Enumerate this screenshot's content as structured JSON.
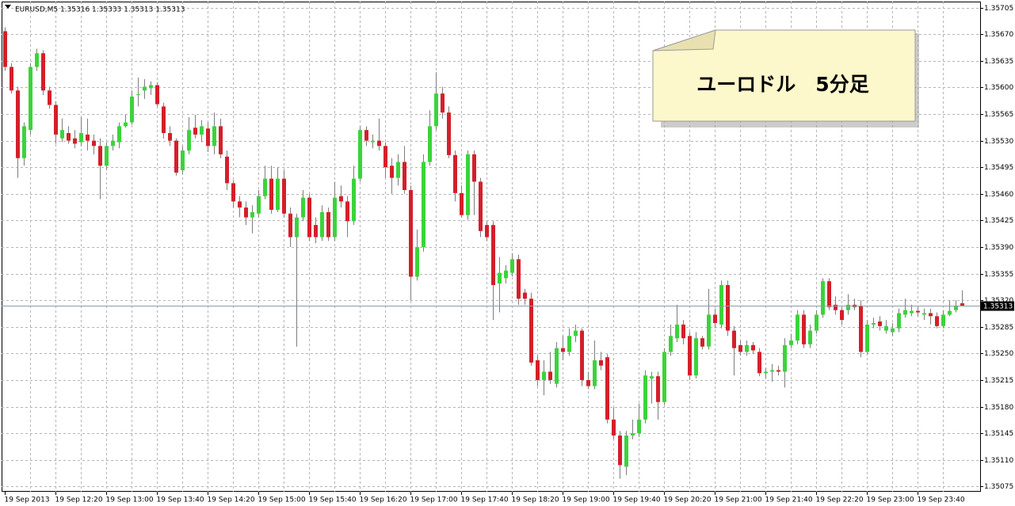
{
  "chart_data": {
    "type": "candlestick",
    "header": "EURUSD,M5  1.35316 1.35333 1.35313 1.35313",
    "annotation": "ユーロドル　5分足",
    "categories": [
      "19 Sep 2013",
      null,
      null,
      null,
      null,
      null,
      null,
      null,
      "19 Sep 12:20",
      null,
      null,
      null,
      null,
      null,
      null,
      null,
      "19 Sep 13:00",
      null,
      null,
      null,
      null,
      null,
      null,
      null,
      "19 Sep 13:40",
      null,
      null,
      null,
      null,
      null,
      null,
      null,
      "19 Sep 14:20",
      null,
      null,
      null,
      null,
      null,
      null,
      null,
      "19 Sep 15:00",
      null,
      null,
      null,
      null,
      null,
      null,
      null,
      "19 Sep 15:40",
      null,
      null,
      null,
      null,
      null,
      null,
      null,
      "19 Sep 16:20",
      null,
      null,
      null,
      null,
      null,
      null,
      null,
      "19 Sep 17:00",
      null,
      null,
      null,
      null,
      null,
      null,
      null,
      "19 Sep 17:40",
      null,
      null,
      null,
      null,
      null,
      null,
      null,
      "19 Sep 18:20",
      null,
      null,
      null,
      null,
      null,
      null,
      null,
      "19 Sep 19:00",
      null,
      null,
      null,
      null,
      null,
      null,
      null,
      "19 Sep 19:40",
      null,
      null,
      null,
      null,
      null,
      null,
      null,
      "19 Sep 20:20",
      null,
      null,
      null,
      null,
      null,
      null,
      null,
      "19 Sep 21:00",
      null,
      null,
      null,
      null,
      null,
      null,
      null,
      "19 Sep 21:40",
      null,
      null,
      null,
      null,
      null,
      null,
      null,
      "19 Sep 22:20",
      null,
      null,
      null,
      null,
      null,
      null,
      null,
      "19 Sep 23:00",
      null,
      null,
      null,
      null,
      null,
      null,
      null,
      "19 Sep 23:40",
      null,
      null,
      null,
      null,
      null,
      null,
      null
    ],
    "open": [
      1.35674,
      1.35627,
      1.35596,
      1.35507,
      1.35544,
      1.35627,
      1.35645,
      1.35596,
      1.35577,
      1.35533,
      1.3554,
      1.35533,
      1.35528,
      1.35538,
      1.3553,
      1.35523,
      1.35497,
      1.35523,
      1.35528,
      1.35549,
      1.35554,
      1.3559,
      1.35596,
      1.35599,
      1.35603,
      1.35575,
      1.3554,
      1.3553,
      1.35491,
      1.35517,
      1.35547,
      1.35538,
      1.35546,
      1.35523,
      1.35549,
      1.35509,
      1.35474,
      1.3545,
      1.35442,
      1.35429,
      1.35434,
      1.35457,
      1.3548,
      1.35439,
      1.3548,
      1.35434,
      1.35403,
      1.35429,
      1.35455,
      1.35419,
      1.35403,
      1.35436,
      1.35403,
      1.35457,
      1.3545,
      1.35424,
      1.3548,
      1.35544,
      1.35528,
      1.3553,
      1.35523,
      1.35497,
      1.35481,
      1.35502,
      1.35465,
      1.35351,
      1.3539,
      1.35502,
      1.35549,
      1.35592,
      1.35567,
      1.35511,
      1.35461,
      1.35432,
      1.35512,
      1.35476,
      1.35419,
      1.35419,
      1.35342,
      1.35349,
      1.35356,
      1.35374,
      1.3533,
      1.35322,
      1.35241,
      1.35215,
      1.35226,
      1.3521,
      1.35257,
      1.35252,
      1.35273,
      1.3528,
      1.35215,
      1.35207,
      1.35241,
      1.35245,
      1.35163,
      1.35142,
      1.35101,
      1.35142,
      1.35145,
      1.35163,
      1.35217,
      1.3522,
      1.35186,
      1.35252,
      1.3527,
      1.35288,
      1.35273,
      1.35221,
      1.3527,
      1.35259,
      1.35301,
      1.35288,
      1.3534,
      1.3528,
      1.35261,
      1.35252,
      1.35261,
      1.35252,
      1.35224,
      1.35226,
      1.35228,
      1.35226,
      1.35261,
      1.35267,
      1.35301,
      1.35262,
      1.3528,
      1.35301,
      1.35345,
      1.35314,
      1.35307,
      1.35307,
      1.35314,
      1.35313,
      1.35252,
      1.35288,
      1.35292,
      1.3528,
      1.35278,
      1.35283,
      1.35301,
      1.35303,
      1.35306,
      1.35301,
      1.35303,
      1.35299,
      1.35286,
      1.35301,
      1.35307,
      1.35316
    ],
    "high": [
      1.35679,
      1.35632,
      1.35601,
      1.35554,
      1.35632,
      1.35651,
      1.35649,
      1.35601,
      1.35582,
      1.35559,
      1.35549,
      1.35544,
      1.35561,
      1.35559,
      1.35538,
      1.35533,
      1.35528,
      1.35538,
      1.35554,
      1.35564,
      1.35596,
      1.35613,
      1.35611,
      1.35608,
      1.35607,
      1.3558,
      1.35549,
      1.35533,
      1.35523,
      1.35561,
      1.35564,
      1.35557,
      1.35554,
      1.35567,
      1.35559,
      1.35517,
      1.35478,
      1.35457,
      1.3545,
      1.35445,
      1.35465,
      1.35497,
      1.35497,
      1.35495,
      1.35491,
      1.35442,
      1.35434,
      1.35465,
      1.3546,
      1.35429,
      1.35445,
      1.35442,
      1.35476,
      1.35471,
      1.35457,
      1.35497,
      1.35549,
      1.35549,
      1.35538,
      1.35559,
      1.35528,
      1.35507,
      1.35512,
      1.35523,
      1.35471,
      1.35413,
      1.35512,
      1.3557,
      1.3562,
      1.35601,
      1.35575,
      1.35517,
      1.35471,
      1.35517,
      1.35517,
      1.35481,
      1.35424,
      1.35424,
      1.35377,
      1.35366,
      1.35382,
      1.3538,
      1.35335,
      1.3533,
      1.35247,
      1.35241,
      1.35252,
      1.35265,
      1.35273,
      1.35283,
      1.35288,
      1.35283,
      1.35226,
      1.35267,
      1.35252,
      1.35249,
      1.35179,
      1.35148,
      1.35148,
      1.35163,
      1.35184,
      1.35228,
      1.35226,
      1.35226,
      1.35257,
      1.35288,
      1.35314,
      1.35294,
      1.35278,
      1.35278,
      1.35273,
      1.35335,
      1.35309,
      1.35346,
      1.35346,
      1.35286,
      1.35267,
      1.35267,
      1.35265,
      1.35257,
      1.35231,
      1.35236,
      1.35234,
      1.3527,
      1.35276,
      1.35307,
      1.35307,
      1.35288,
      1.35307,
      1.35349,
      1.35349,
      1.35325,
      1.35311,
      1.35328,
      1.35322,
      1.3532,
      1.35294,
      1.35297,
      1.35299,
      1.35294,
      1.3529,
      1.35309,
      1.35322,
      1.35314,
      1.35311,
      1.35309,
      1.35309,
      1.35304,
      1.35307,
      1.3532,
      1.3532,
      1.35333
    ],
    "low": [
      1.35622,
      1.35592,
      1.35481,
      1.35497,
      1.35538,
      1.35622,
      1.3559,
      1.35572,
      1.35526,
      1.35528,
      1.35526,
      1.3552,
      1.35523,
      1.35517,
      1.35512,
      1.35453,
      1.35491,
      1.35517,
      1.3552,
      1.35547,
      1.35551,
      1.35575,
      1.35585,
      1.3559,
      1.35575,
      1.35533,
      1.35523,
      1.35484,
      1.35486,
      1.35512,
      1.35533,
      1.35528,
      1.35515,
      1.35512,
      1.35507,
      1.35465,
      1.35442,
      1.35429,
      1.35419,
      1.35408,
      1.35429,
      1.35453,
      1.35434,
      1.35436,
      1.35429,
      1.3539,
      1.35259,
      1.35424,
      1.35398,
      1.35395,
      1.35398,
      1.35398,
      1.35398,
      1.35442,
      1.35403,
      1.35419,
      1.35476,
      1.35523,
      1.3552,
      1.35517,
      1.35481,
      1.3546,
      1.35471,
      1.3546,
      1.3532,
      1.35346,
      1.35384,
      1.35497,
      1.35544,
      1.35559,
      1.35507,
      1.3545,
      1.35429,
      1.35426,
      1.35432,
      1.35403,
      1.35398,
      1.35294,
      1.35304,
      1.35342,
      1.35351,
      1.35314,
      1.35314,
      1.35234,
      1.35207,
      1.35195,
      1.3521,
      1.35205,
      1.35241,
      1.35247,
      1.35265,
      1.35207,
      1.35203,
      1.35203,
      1.35228,
      1.35158,
      1.35137,
      1.35085,
      1.3509,
      1.35137,
      1.3514,
      1.35158,
      1.35184,
      1.35163,
      1.35182,
      1.35247,
      1.35265,
      1.35262,
      1.35215,
      1.35217,
      1.35255,
      1.35255,
      1.35283,
      1.35283,
      1.35273,
      1.35221,
      1.35247,
      1.35247,
      1.35249,
      1.3522,
      1.35217,
      1.35213,
      1.35221,
      1.35205,
      1.35257,
      1.35262,
      1.35257,
      1.35257,
      1.35276,
      1.35297,
      1.35307,
      1.35301,
      1.35288,
      1.35301,
      1.35307,
      1.35245,
      1.35249,
      1.35283,
      1.3528,
      1.35276,
      1.35273,
      1.35278,
      1.35297,
      1.35299,
      1.35299,
      1.35294,
      1.35288,
      1.35283,
      1.35283,
      1.35299,
      1.35304,
      1.35313
    ],
    "close": [
      1.35627,
      1.35596,
      1.35507,
      1.35549,
      1.35627,
      1.35645,
      1.35596,
      1.35577,
      1.35538,
      1.35544,
      1.3553,
      1.35526,
      1.3554,
      1.3553,
      1.35523,
      1.35497,
      1.35523,
      1.3553,
      1.35549,
      1.35554,
      1.35588,
      1.35591,
      1.35601,
      1.35603,
      1.35578,
      1.3554,
      1.3553,
      1.35488,
      1.35517,
      1.35544,
      1.35538,
      1.35549,
      1.35523,
      1.35549,
      1.35512,
      1.35474,
      1.3545,
      1.35442,
      1.35429,
      1.35436,
      1.35457,
      1.3548,
      1.35439,
      1.3548,
      1.35434,
      1.35403,
      1.35429,
      1.35455,
      1.35403,
      1.35403,
      1.35436,
      1.35403,
      1.35455,
      1.3545,
      1.35424,
      1.3548,
      1.35544,
      1.3553,
      1.3553,
      1.35523,
      1.35495,
      1.35481,
      1.35502,
      1.35465,
      1.35351,
      1.3539,
      1.35502,
      1.35549,
      1.35592,
      1.35567,
      1.35511,
      1.35461,
      1.35432,
      1.35512,
      1.35476,
      1.35411,
      1.35403,
      1.3534,
      1.35356,
      1.35359,
      1.35374,
      1.35322,
      1.35322,
      1.35238,
      1.35215,
      1.35226,
      1.35215,
      1.35257,
      1.35252,
      1.35273,
      1.3528,
      1.35215,
      1.35207,
      1.35241,
      1.35234,
      1.35163,
      1.35142,
      1.35103,
      1.35142,
      1.35145,
      1.35163,
      1.35221,
      1.3522,
      1.35186,
      1.35252,
      1.35273,
      1.35288,
      1.3527,
      1.35221,
      1.3527,
      1.35259,
      1.35301,
      1.3529,
      1.3534,
      1.3528,
      1.35257,
      1.35252,
      1.35261,
      1.35254,
      1.35224,
      1.35226,
      1.35228,
      1.35226,
      1.35261,
      1.35267,
      1.35301,
      1.35262,
      1.3528,
      1.35301,
      1.35345,
      1.35311,
      1.35307,
      1.35294,
      1.35314,
      1.35311,
      1.35252,
      1.35288,
      1.3529,
      1.35286,
      1.35286,
      1.35283,
      1.35303,
      1.35307,
      1.35306,
      1.35304,
      1.35303,
      1.35299,
      1.35286,
      1.35301,
      1.35306,
      1.35313,
      1.35313
    ],
    "up_color": "#3ad43a",
    "down_color": "#d41f2a",
    "wick_color": "#7d7d7d",
    "bid": 1.35313,
    "bid_color": "#8a9aaa",
    "ylim": [
      1.35068,
      1.35713
    ],
    "yticks": [
      1.35705,
      {
        "value": 1.3567,
        "label": "1.35670"
      },
      1.35635,
      {
        "value": 1.356,
        "label": "1.35600"
      },
      1.35565,
      {
        "value": 1.3553,
        "label": "1.35530"
      },
      1.35495,
      {
        "value": 1.3546,
        "label": "1.35460"
      },
      1.35425,
      {
        "value": 1.3539,
        "label": "1.35390"
      },
      1.35355,
      {
        "value": 1.3532,
        "label": "1.35320"
      },
      1.35285,
      {
        "value": 1.3525,
        "label": "1.35250"
      },
      1.35215,
      {
        "value": 1.3518,
        "label": "1.35180"
      },
      1.35145,
      {
        "value": 1.3511,
        "label": "1.35110"
      },
      1.35075
    ],
    "grid": true
  }
}
